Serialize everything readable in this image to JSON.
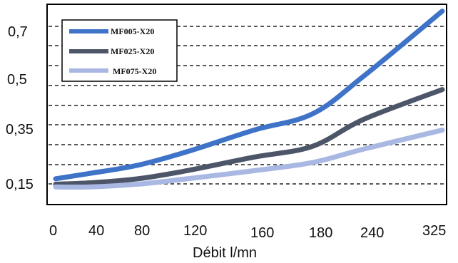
{
  "chart_data": {
    "type": "line",
    "xlabel": "Débit l/mn",
    "ylabel": "",
    "x_ticks": [
      "0",
      "40",
      "80",
      "120",
      "160",
      "180",
      "240",
      "325"
    ],
    "y_ticks": [
      "0,15",
      "0,35",
      "0,5",
      "0,7"
    ],
    "ylim": [
      0.05,
      0.78
    ],
    "grid": "horizontal-dashed",
    "legend_position": "top-left",
    "series": [
      {
        "name": "MF005-X20",
        "color": "#3f73c8",
        "x": [
          0,
          40,
          80,
          120,
          160,
          180,
          240,
          325
        ],
        "y": [
          0.14,
          0.16,
          0.19,
          0.24,
          0.32,
          0.38,
          0.52,
          0.76
        ]
      },
      {
        "name": "MF025-X20",
        "color": "#4d5668",
        "x": [
          0,
          40,
          80,
          120,
          160,
          180,
          240,
          325
        ],
        "y": [
          0.12,
          0.125,
          0.14,
          0.17,
          0.22,
          0.26,
          0.36,
          0.47
        ]
      },
      {
        "name": "MF075-X20",
        "color": "#a9b7e3",
        "x": [
          0,
          40,
          80,
          120,
          160,
          180,
          240,
          325
        ],
        "y": [
          0.11,
          0.11,
          0.12,
          0.14,
          0.17,
          0.2,
          0.25,
          0.32
        ]
      }
    ]
  }
}
